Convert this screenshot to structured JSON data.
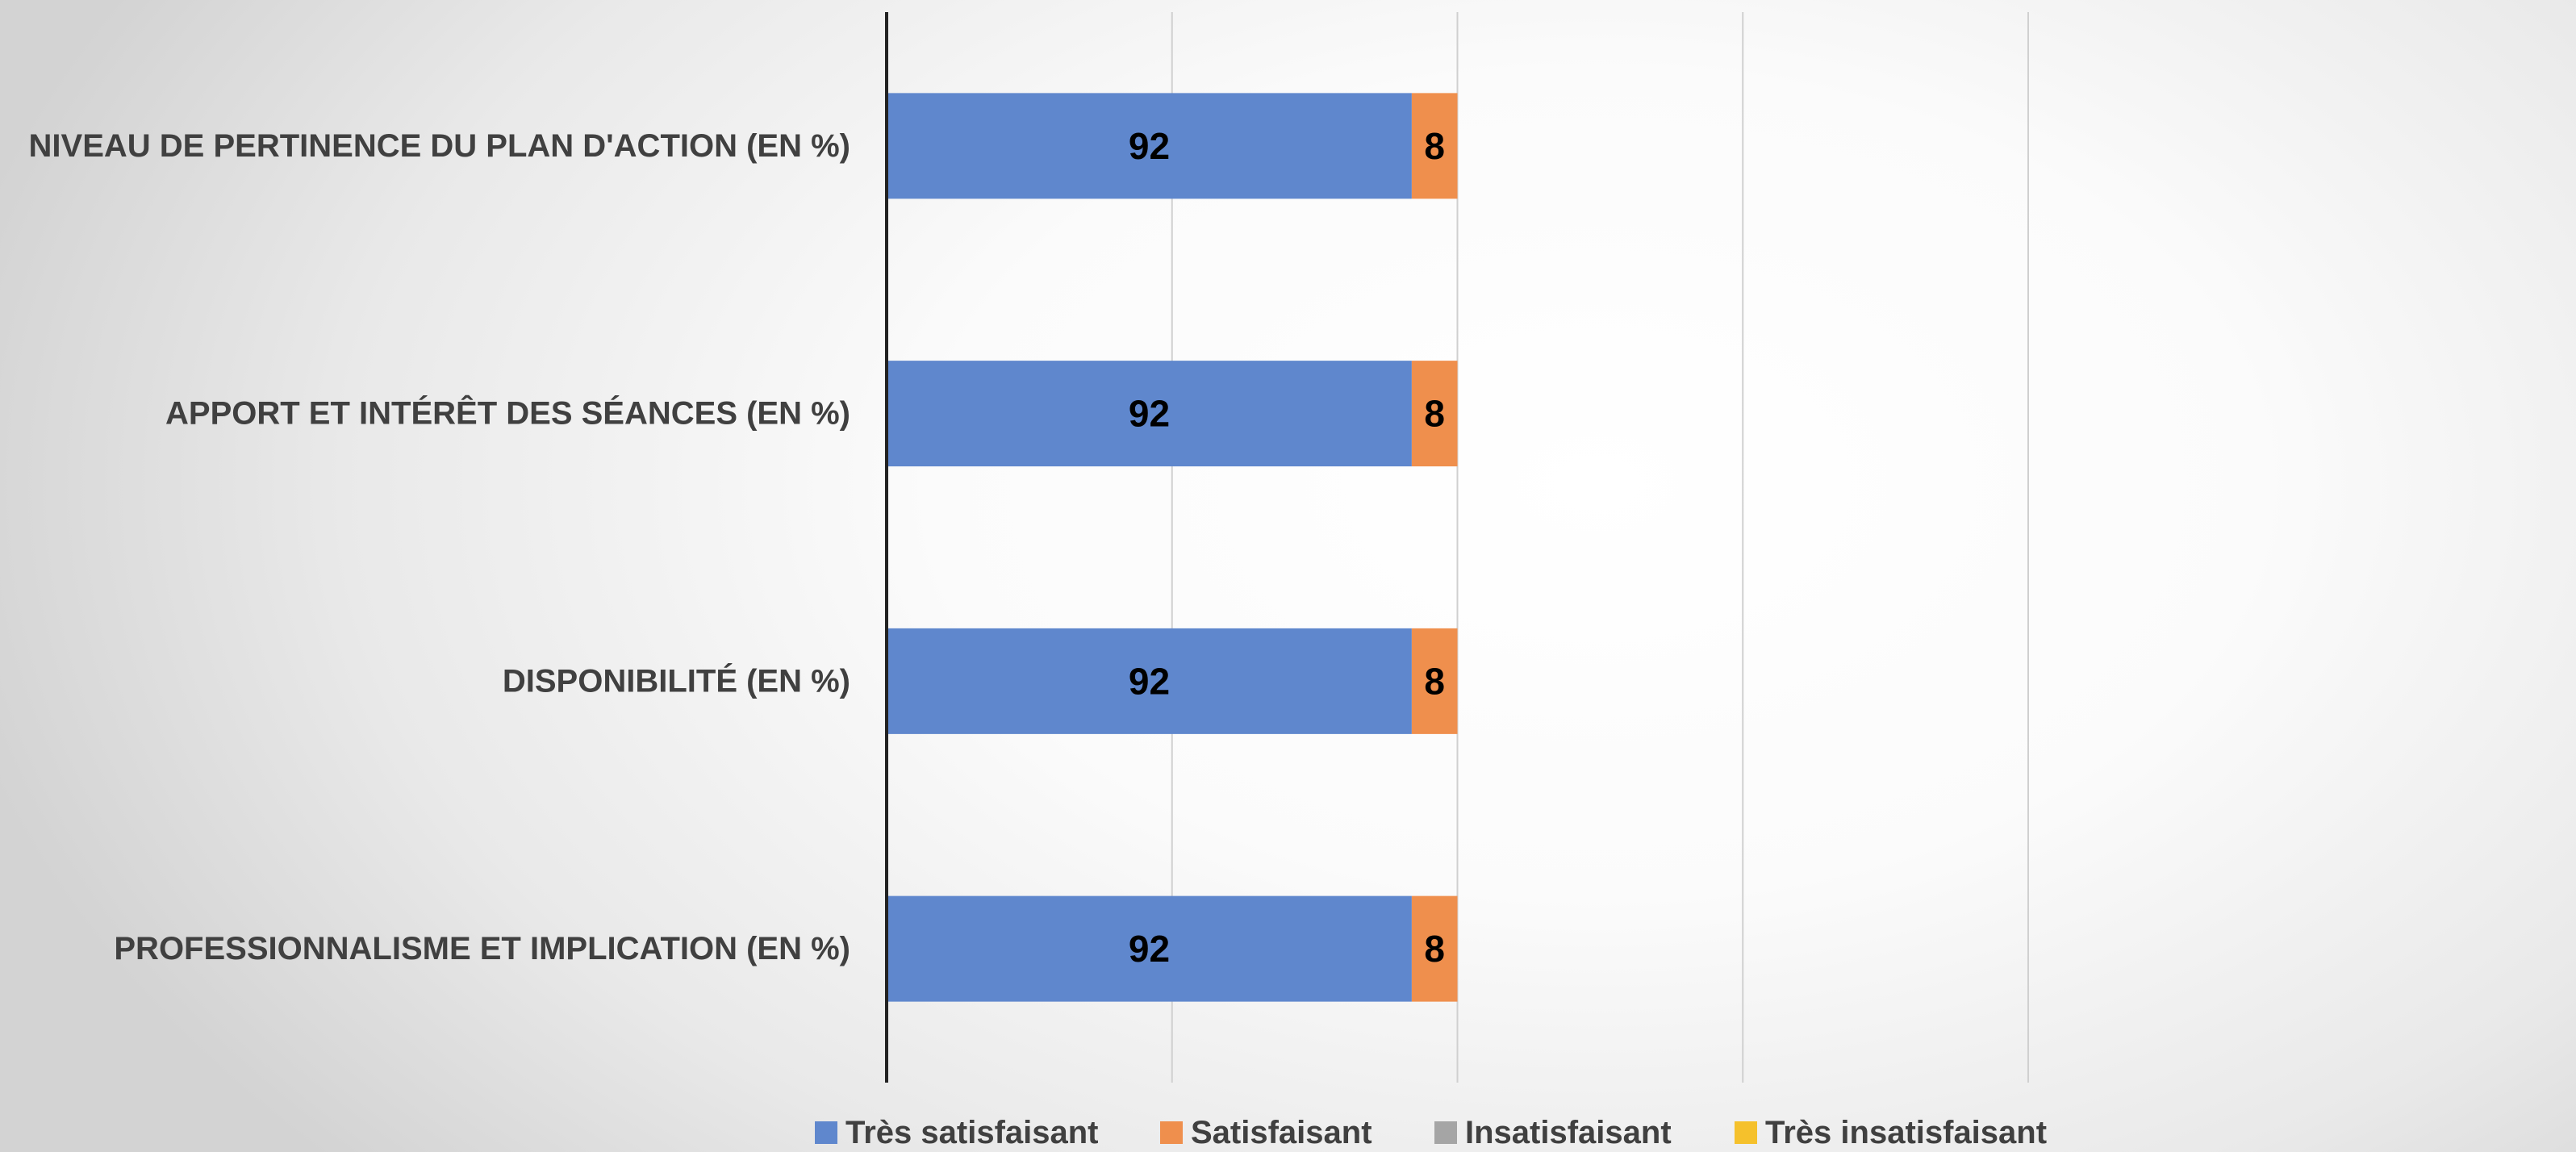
{
  "chart_data": {
    "type": "bar",
    "orientation": "horizontal",
    "stacked": true,
    "title": "",
    "xlabel": "",
    "ylabel": "",
    "categories": [
      "NIVEAU DE PERTINENCE DU PLAN D'ACTION  (EN %)",
      "APPORT ET INTÉRÊT DES SÉANCES (EN %)",
      "DISPONIBILITÉ  (EN %)",
      "PROFESSIONNALISME ET IMPLICATION (EN %)"
    ],
    "series": [
      {
        "name": "Très satisfaisant",
        "color": "#5f87cd",
        "values": [
          92,
          92,
          92,
          92
        ]
      },
      {
        "name": "Satisfaisant",
        "color": "#ef8f4d",
        "values": [
          8,
          8,
          8,
          8
        ]
      },
      {
        "name": "Insatisfaisant",
        "color": "#a5a5a5",
        "values": [
          0,
          0,
          0,
          0
        ]
      },
      {
        "name": "Très insatisfaisant",
        "color": "#f5c12c",
        "values": [
          0,
          0,
          0,
          0
        ]
      }
    ],
    "xlim": [
      0,
      200
    ],
    "grid": true,
    "legend": "bottom"
  }
}
